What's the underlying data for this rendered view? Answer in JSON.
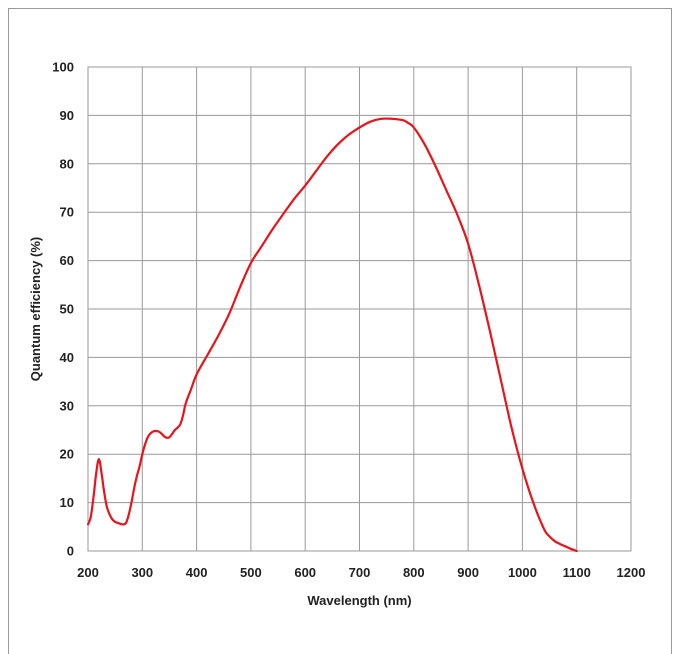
{
  "chart_data": {
    "type": "line",
    "title": "",
    "xlabel": "Wavelength (nm)",
    "ylabel": "Quantum efficiency (%)",
    "xlim": [
      200,
      1200
    ],
    "ylim": [
      0,
      100
    ],
    "x_ticks": [
      200,
      300,
      400,
      500,
      600,
      700,
      800,
      900,
      1000,
      1100,
      1200
    ],
    "y_ticks": [
      0,
      10,
      20,
      30,
      40,
      50,
      60,
      70,
      80,
      90,
      100
    ],
    "grid": true,
    "colors": {
      "series": "#e8141b",
      "grid": "#9a9a9a",
      "frame": "#9a9a9a"
    },
    "series": [
      {
        "x": [
          200,
          205,
          210,
          215,
          220,
          225,
          230,
          235,
          240,
          245,
          250,
          255,
          260,
          265,
          270,
          275,
          280,
          285,
          290,
          295,
          300,
          305,
          310,
          315,
          320,
          325,
          330,
          335,
          340,
          345,
          350,
          355,
          360,
          365,
          370,
          375,
          380,
          390,
          400,
          420,
          440,
          460,
          480,
          500,
          520,
          540,
          560,
          580,
          600,
          620,
          640,
          660,
          680,
          700,
          720,
          740,
          760,
          780,
          790,
          800,
          820,
          840,
          860,
          880,
          900,
          920,
          940,
          960,
          980,
          1000,
          1020,
          1040,
          1050,
          1060,
          1070,
          1080,
          1090,
          1100
        ],
        "y": [
          5.5,
          7,
          11,
          16,
          19,
          16,
          12,
          9,
          7.5,
          6.5,
          6,
          5.8,
          5.6,
          5.5,
          5.8,
          7.5,
          10,
          13,
          15.5,
          17.5,
          20,
          22,
          23.5,
          24.3,
          24.7,
          24.8,
          24.7,
          24.3,
          23.7,
          23.4,
          23.5,
          24.2,
          25,
          25.5,
          26.2,
          28,
          30.5,
          33.5,
          36.5,
          40.5,
          44.5,
          49,
          54.5,
          59.5,
          63,
          66.5,
          69.7,
          72.8,
          75.5,
          78.5,
          81.5,
          84,
          86,
          87.5,
          88.7,
          89.3,
          89.3,
          89,
          88.4,
          87.5,
          84,
          79.5,
          74.5,
          69.5,
          63.5,
          55,
          45.5,
          35.5,
          25.5,
          17,
          10,
          4.5,
          3,
          2,
          1.4,
          0.9,
          0.4,
          0
        ]
      }
    ]
  }
}
